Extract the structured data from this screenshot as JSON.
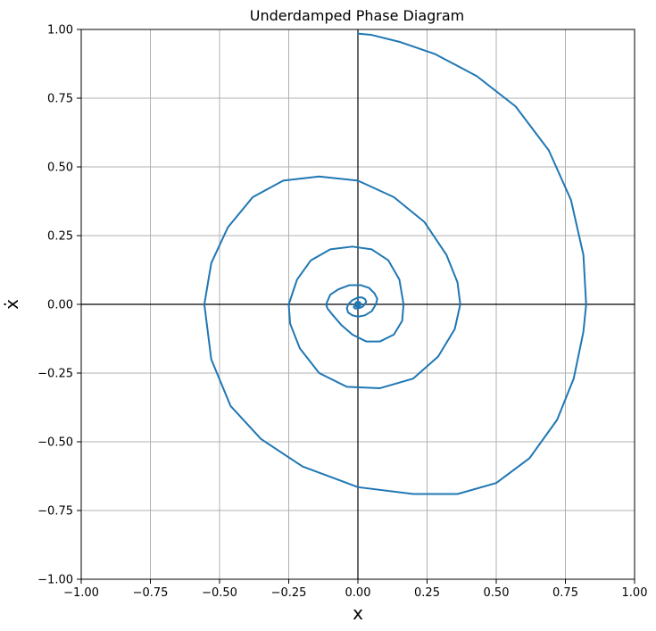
{
  "chart_data": {
    "type": "line",
    "title": "Underdamped Phase Diagram",
    "xlabel": "x",
    "ylabel": "ẋ",
    "xlim": [
      -1.0,
      1.0
    ],
    "ylim": [
      -1.0,
      1.0
    ],
    "xticks": [
      -1.0,
      -0.75,
      -0.5,
      -0.25,
      0.0,
      0.25,
      0.5,
      0.75,
      1.0
    ],
    "yticks": [
      -1.0,
      -0.75,
      -0.5,
      -0.25,
      0.0,
      0.25,
      0.5,
      0.75,
      1.0
    ],
    "xtick_labels": [
      "−1.00",
      "−0.75",
      "−0.50",
      "−0.25",
      "0.00",
      "0.25",
      "0.50",
      "0.75",
      "1.00"
    ],
    "ytick_labels": [
      "−1.00",
      "−0.75",
      "−0.50",
      "−0.25",
      "0.00",
      "0.25",
      "0.50",
      "0.75",
      "1.00"
    ],
    "grid": true,
    "zero_lines": true,
    "series": [
      {
        "color": "#1f77b4",
        "x": [
          0.0,
          0.05,
          0.15,
          0.28,
          0.43,
          0.57,
          0.69,
          0.77,
          0.815,
          0.825,
          0.815,
          0.78,
          0.72,
          0.62,
          0.5,
          0.36,
          0.2,
          0.0,
          -0.2,
          -0.35,
          -0.46,
          -0.53,
          -0.555,
          -0.53,
          -0.47,
          -0.38,
          -0.27,
          -0.14,
          0.0,
          0.13,
          0.24,
          0.32,
          0.36,
          0.37,
          0.35,
          0.29,
          0.2,
          0.08,
          -0.04,
          -0.14,
          -0.21,
          -0.245,
          -0.25,
          -0.22,
          -0.17,
          -0.1,
          -0.02,
          0.05,
          0.11,
          0.15,
          0.165,
          0.16,
          0.13,
          0.08,
          0.03,
          -0.02,
          -0.06,
          -0.09,
          -0.11,
          -0.115,
          -0.1,
          -0.07,
          -0.03,
          0.01,
          0.04,
          0.06,
          0.07,
          0.065,
          0.05,
          0.025,
          0.0,
          -0.02,
          -0.035,
          -0.04,
          -0.035,
          -0.02,
          0.0,
          0.015,
          0.025,
          0.03,
          0.025,
          0.015,
          0.0,
          -0.01,
          -0.015,
          -0.012,
          -0.005,
          0.0,
          0.005,
          0.008,
          0.006,
          0.002,
          0.0
        ],
        "y": [
          0.985,
          0.98,
          0.955,
          0.91,
          0.83,
          0.72,
          0.56,
          0.38,
          0.18,
          0.0,
          -0.1,
          -0.27,
          -0.42,
          -0.56,
          -0.65,
          -0.69,
          -0.69,
          -0.665,
          -0.59,
          -0.49,
          -0.37,
          -0.2,
          0.0,
          0.15,
          0.28,
          0.39,
          0.45,
          0.465,
          0.45,
          0.39,
          0.3,
          0.18,
          0.08,
          0.0,
          -0.09,
          -0.19,
          -0.27,
          -0.305,
          -0.3,
          -0.25,
          -0.16,
          -0.07,
          0.0,
          0.09,
          0.16,
          0.2,
          0.21,
          0.2,
          0.16,
          0.09,
          0.0,
          -0.06,
          -0.11,
          -0.135,
          -0.135,
          -0.11,
          -0.075,
          -0.04,
          -0.015,
          0.0,
          0.035,
          0.055,
          0.07,
          0.07,
          0.06,
          0.04,
          0.02,
          0.0,
          -0.025,
          -0.04,
          -0.045,
          -0.04,
          -0.03,
          -0.015,
          0.0,
          0.015,
          0.025,
          0.025,
          0.02,
          0.01,
          0.0,
          -0.01,
          -0.015,
          -0.015,
          -0.01,
          -0.005,
          0.0,
          0.005,
          0.008,
          0.006,
          0.003,
          0.0,
          0.0
        ]
      }
    ]
  }
}
